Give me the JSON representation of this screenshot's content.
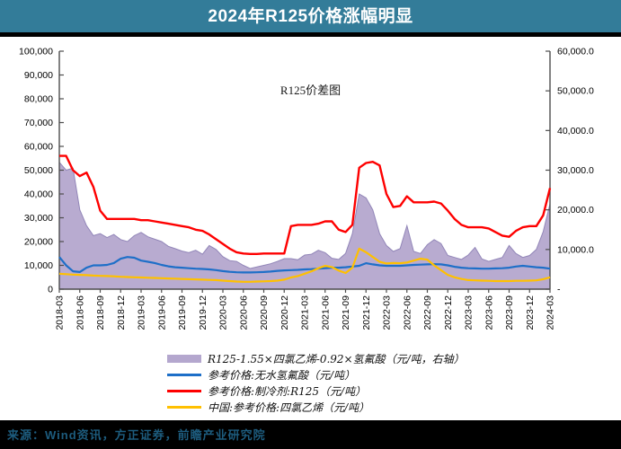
{
  "header": {
    "title": "2024年R125价格涨幅明显"
  },
  "footer": {
    "source_text": "来源：Wind资讯，方正证券，前瞻产业研究院"
  },
  "colors": {
    "header_bg": "#337C99",
    "footer_bg": "#000000",
    "footer_text": "#1D5C7E",
    "axis": "#4d4d4d",
    "area_fill": "#B4A7CE",
    "area_edge": "#9286B8",
    "hf_blue": "#1E6FC8",
    "r125_red": "#FE0000",
    "pce_yellow": "#FFC000"
  },
  "chart_data": {
    "type": "line",
    "title": "R125价差图",
    "x_start": "2018-03",
    "x_end": "2024-03",
    "x_interval": "monthly",
    "grid": false,
    "legend_position": "bottom",
    "x_tick_labels": [
      "2018-03",
      "2018-06",
      "2018-09",
      "2018-12",
      "2019-03",
      "2019-06",
      "2019-09",
      "2019-12",
      "2020-03",
      "2020-06",
      "2020-09",
      "2020-12",
      "2021-03",
      "2021-06",
      "2021-09",
      "2021-12",
      "2022-03",
      "2022-06",
      "2022-09",
      "2022-12",
      "2023-03",
      "2023-06",
      "2023-09",
      "2023-12",
      "2024-03"
    ],
    "left_axis": {
      "min": 0,
      "max": 100000,
      "tick_labels": [
        "0",
        "10,000",
        "20,000",
        "30,000",
        "40,000",
        "50,000",
        "60,000",
        "70,000",
        "80,000",
        "90,000",
        "100,000"
      ]
    },
    "right_axis": {
      "min": 0,
      "max": 60000,
      "tick_labels": [
        "-",
        "10,000.0",
        "20,000.0",
        "30,000.0",
        "40,000.0",
        "50,000.0",
        "60,000.0"
      ]
    },
    "series": [
      {
        "name": "R125-1.55×四氯乙烯-0.92×氢氟酸（元/吨，右轴）",
        "marker": "area",
        "axis": "right",
        "color": "#B4A7CE",
        "edge": "#9286B8",
        "values": [
          32000,
          30000,
          30500,
          20000,
          16000,
          13500,
          14000,
          13000,
          13800,
          12500,
          12000,
          13500,
          14300,
          13200,
          12600,
          12000,
          10800,
          10200,
          9600,
          9200,
          9800,
          8800,
          11000,
          10000,
          8200,
          7200,
          7000,
          6000,
          5200,
          5600,
          6000,
          6400,
          7000,
          7700,
          7700,
          7400,
          8600,
          8800,
          9800,
          9200,
          7800,
          7500,
          9000,
          14000,
          24000,
          23000,
          20000,
          14000,
          11000,
          9500,
          10200,
          16000,
          9500,
          9000,
          11200,
          12500,
          11500,
          8500,
          8000,
          7500,
          8600,
          10500,
          7600,
          7000,
          7500,
          8000,
          11000,
          9000,
          8000,
          8500,
          10000,
          14500,
          21500
        ]
      },
      {
        "name": "参考价格:无水氢氟酸（元/吨）",
        "marker": "line",
        "axis": "left",
        "color": "#1E6FC8",
        "values": [
          13500,
          10000,
          7500,
          7200,
          9000,
          10000,
          10000,
          10200,
          11000,
          12800,
          13500,
          13200,
          12000,
          11500,
          11000,
          10200,
          9600,
          9200,
          9000,
          8800,
          8600,
          8500,
          8300,
          8000,
          7600,
          7300,
          7100,
          7000,
          7000,
          7100,
          7200,
          7400,
          7700,
          7900,
          8000,
          8100,
          8300,
          8400,
          8600,
          8800,
          9000,
          9000,
          9200,
          9500,
          9800,
          10900,
          10400,
          10000,
          9800,
          9800,
          9800,
          10000,
          10200,
          10300,
          10400,
          10500,
          10400,
          10000,
          9400,
          9000,
          8800,
          8700,
          8600,
          8600,
          8700,
          8800,
          9000,
          9500,
          9800,
          9500,
          9200,
          9000,
          8600
        ]
      },
      {
        "name": "参考价格:制冷剂:R125（元/吨）",
        "marker": "line",
        "axis": "left",
        "color": "#FE0000",
        "values": [
          56000,
          56000,
          50000,
          47500,
          49000,
          43000,
          33000,
          29500,
          29500,
          29500,
          29500,
          29500,
          29000,
          29000,
          28500,
          28000,
          27500,
          27000,
          26500,
          26000,
          25000,
          24500,
          23000,
          21000,
          19000,
          17000,
          15500,
          15000,
          14800,
          14800,
          15000,
          15000,
          15000,
          15000,
          26500,
          27000,
          27000,
          27000,
          27500,
          28500,
          28500,
          25000,
          24000,
          27000,
          51000,
          53000,
          53500,
          52000,
          40000,
          34500,
          35000,
          39000,
          36500,
          36500,
          36500,
          36800,
          36000,
          33000,
          29500,
          27000,
          26000,
          26000,
          26000,
          25500,
          24000,
          22500,
          22000,
          24500,
          26000,
          26500,
          26500,
          31000,
          42500
        ]
      },
      {
        "name": "中国:参考价格:四氯乙烯（元/吨）",
        "marker": "line",
        "axis": "left",
        "color": "#FFC000",
        "values": [
          6500,
          6300,
          6100,
          6000,
          5900,
          5700,
          5600,
          5500,
          5400,
          5200,
          5100,
          5000,
          4900,
          4800,
          4700,
          4600,
          4500,
          4400,
          4300,
          4200,
          4100,
          4000,
          3900,
          3800,
          3600,
          3400,
          3200,
          3100,
          3100,
          3200,
          3300,
          3400,
          3600,
          4000,
          4900,
          5500,
          6500,
          7500,
          8800,
          9800,
          9300,
          7800,
          6800,
          9000,
          17000,
          15500,
          13500,
          11500,
          10800,
          11000,
          10900,
          11200,
          12000,
          12800,
          12400,
          10000,
          8000,
          6000,
          5000,
          4300,
          3800,
          3700,
          3600,
          3500,
          3400,
          3400,
          3400,
          3500,
          3500,
          3600,
          3700,
          4200,
          5000
        ]
      }
    ]
  }
}
